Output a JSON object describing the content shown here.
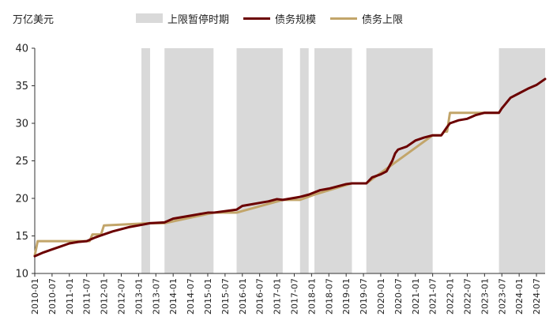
{
  "chart_data": {
    "type": "line",
    "unit_label": "万亿美元",
    "legend": [
      "上限暂停时期",
      "债务规模",
      "债务上限"
    ],
    "colors": {
      "suspension": "#d9d9d9",
      "debt": "#6b0000",
      "ceiling": "#c2a56a",
      "axis": "#333333"
    },
    "y_axis": {
      "min": 10,
      "max": 40,
      "ticks": [
        10,
        15,
        20,
        25,
        30,
        35,
        40
      ]
    },
    "x_axis": {
      "start": "2010-01",
      "end": "2024-10",
      "tick_labels": [
        "2010-01",
        "2010-07",
        "2011-01",
        "2011-07",
        "2012-01",
        "2012-07",
        "2013-01",
        "2013-07",
        "2014-01",
        "2014-07",
        "2015-01",
        "2015-07",
        "2016-01",
        "2016-07",
        "2017-01",
        "2017-07",
        "2018-01",
        "2018-07",
        "2019-01",
        "2019-07",
        "2020-01",
        "2020-07",
        "2021-01",
        "2021-07",
        "2022-01",
        "2022-07",
        "2023-01",
        "2023-07",
        "2024-01",
        "2024-07"
      ]
    },
    "suspension_periods": [
      [
        "2013-02",
        "2013-05"
      ],
      [
        "2013-10",
        "2015-03"
      ],
      [
        "2015-11",
        "2017-03"
      ],
      [
        "2017-09",
        "2017-12"
      ],
      [
        "2018-02",
        "2019-03"
      ],
      [
        "2019-08",
        "2021-07"
      ],
      [
        "2023-06",
        "2024-10"
      ]
    ],
    "series": [
      {
        "name": "债务上限",
        "points": [
          [
            "2010-01",
            12.4
          ],
          [
            "2010-02",
            14.3
          ],
          [
            "2011-08",
            14.3
          ],
          [
            "2011-09",
            15.2
          ],
          [
            "2011-12",
            15.2
          ],
          [
            "2012-01",
            16.4
          ],
          [
            "2013-05",
            16.7
          ],
          [
            "2013-10",
            16.7
          ],
          [
            "2015-03",
            18.1
          ],
          [
            "2015-11",
            18.1
          ],
          [
            "2017-03",
            19.8
          ],
          [
            "2017-09",
            19.8
          ],
          [
            "2018-02",
            20.5
          ],
          [
            "2019-03",
            22.0
          ],
          [
            "2019-08",
            22.0
          ],
          [
            "2021-07",
            28.4
          ],
          [
            "2021-10",
            28.4
          ],
          [
            "2021-11",
            28.9
          ],
          [
            "2021-12",
            28.9
          ],
          [
            "2022-01",
            31.4
          ],
          [
            "2023-06",
            31.4
          ]
        ]
      },
      {
        "name": "债务规模",
        "points": [
          [
            "2010-01",
            12.3
          ],
          [
            "2010-04",
            12.8
          ],
          [
            "2010-07",
            13.2
          ],
          [
            "2010-10",
            13.6
          ],
          [
            "2011-01",
            14.0
          ],
          [
            "2011-04",
            14.2
          ],
          [
            "2011-07",
            14.3
          ],
          [
            "2011-10",
            14.8
          ],
          [
            "2012-01",
            15.2
          ],
          [
            "2012-04",
            15.6
          ],
          [
            "2012-07",
            15.9
          ],
          [
            "2012-10",
            16.2
          ],
          [
            "2013-01",
            16.4
          ],
          [
            "2013-05",
            16.7
          ],
          [
            "2013-10",
            16.8
          ],
          [
            "2014-01",
            17.3
          ],
          [
            "2014-04",
            17.5
          ],
          [
            "2014-07",
            17.7
          ],
          [
            "2014-10",
            17.9
          ],
          [
            "2015-01",
            18.1
          ],
          [
            "2015-03",
            18.1
          ],
          [
            "2015-11",
            18.5
          ],
          [
            "2016-01",
            19.0
          ],
          [
            "2016-04",
            19.2
          ],
          [
            "2016-07",
            19.4
          ],
          [
            "2016-10",
            19.6
          ],
          [
            "2017-01",
            19.9
          ],
          [
            "2017-03",
            19.8
          ],
          [
            "2017-09",
            20.2
          ],
          [
            "2017-12",
            20.5
          ],
          [
            "2018-02",
            20.8
          ],
          [
            "2018-04",
            21.1
          ],
          [
            "2018-07",
            21.3
          ],
          [
            "2018-10",
            21.6
          ],
          [
            "2019-01",
            21.9
          ],
          [
            "2019-03",
            22.0
          ],
          [
            "2019-08",
            22.0
          ],
          [
            "2019-10",
            22.8
          ],
          [
            "2020-01",
            23.2
          ],
          [
            "2020-03",
            23.6
          ],
          [
            "2020-05",
            25.0
          ],
          [
            "2020-06",
            26.0
          ],
          [
            "2020-07",
            26.5
          ],
          [
            "2020-10",
            26.9
          ],
          [
            "2021-01",
            27.7
          ],
          [
            "2021-04",
            28.1
          ],
          [
            "2021-07",
            28.4
          ],
          [
            "2021-10",
            28.4
          ],
          [
            "2021-12",
            29.5
          ],
          [
            "2022-01",
            30.0
          ],
          [
            "2022-04",
            30.4
          ],
          [
            "2022-07",
            30.6
          ],
          [
            "2022-10",
            31.1
          ],
          [
            "2023-01",
            31.4
          ],
          [
            "2023-06",
            31.4
          ],
          [
            "2023-07",
            32.0
          ],
          [
            "2023-10",
            33.4
          ],
          [
            "2024-01",
            34.0
          ],
          [
            "2024-04",
            34.6
          ],
          [
            "2024-07",
            35.1
          ],
          [
            "2024-10",
            35.9
          ]
        ]
      }
    ]
  }
}
